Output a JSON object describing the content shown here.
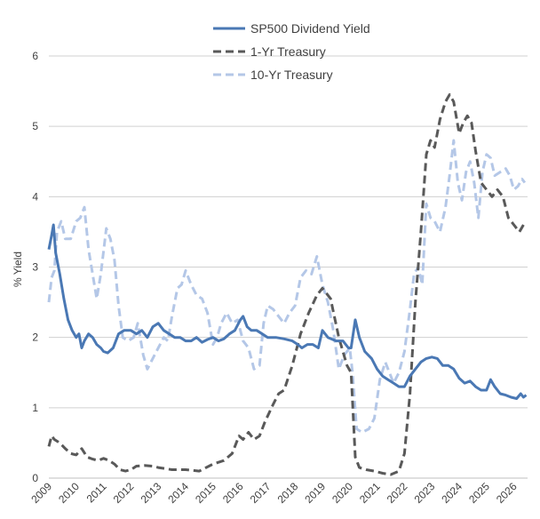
{
  "chart_data": {
    "type": "line",
    "title": "",
    "ylabel": "% Yield",
    "xlabel": "",
    "xlim": [
      2009,
      2026.5
    ],
    "ylim": [
      0,
      6
    ],
    "yticks": [
      "0",
      "1",
      "2",
      "3",
      "4",
      "5",
      "6"
    ],
    "xticks": [
      "2009",
      "2010",
      "2011",
      "2012",
      "2013",
      "2014",
      "2015",
      "2016",
      "2017",
      "2018",
      "2019",
      "2020",
      "2021",
      "2022",
      "2023",
      "2024",
      "2025",
      "2026"
    ],
    "grid": "horizontal",
    "legend": "top-center",
    "series": [
      {
        "name": "SP500 Dividend Yield",
        "color": "#4a78b4",
        "style": "solid",
        "points": [
          [
            2009.0,
            3.25
          ],
          [
            2009.1,
            3.45
          ],
          [
            2009.17,
            3.6
          ],
          [
            2009.25,
            3.2
          ],
          [
            2009.4,
            2.9
          ],
          [
            2009.55,
            2.55
          ],
          [
            2009.7,
            2.25
          ],
          [
            2009.85,
            2.1
          ],
          [
            2010.0,
            2.0
          ],
          [
            2010.1,
            2.05
          ],
          [
            2010.2,
            1.85
          ],
          [
            2010.3,
            1.95
          ],
          [
            2010.45,
            2.05
          ],
          [
            2010.6,
            2.0
          ],
          [
            2010.75,
            1.9
          ],
          [
            2010.9,
            1.85
          ],
          [
            2011.0,
            1.8
          ],
          [
            2011.15,
            1.78
          ],
          [
            2011.35,
            1.85
          ],
          [
            2011.55,
            2.05
          ],
          [
            2011.75,
            2.1
          ],
          [
            2012.0,
            2.1
          ],
          [
            2012.2,
            2.05
          ],
          [
            2012.4,
            2.1
          ],
          [
            2012.6,
            2.0
          ],
          [
            2012.8,
            2.15
          ],
          [
            2013.0,
            2.2
          ],
          [
            2013.2,
            2.1
          ],
          [
            2013.4,
            2.05
          ],
          [
            2013.6,
            2.0
          ],
          [
            2013.8,
            2.0
          ],
          [
            2014.0,
            1.95
          ],
          [
            2014.2,
            1.95
          ],
          [
            2014.4,
            2.0
          ],
          [
            2014.6,
            1.93
          ],
          [
            2014.8,
            1.97
          ],
          [
            2015.0,
            2.0
          ],
          [
            2015.2,
            1.95
          ],
          [
            2015.4,
            1.98
          ],
          [
            2015.6,
            2.05
          ],
          [
            2015.8,
            2.1
          ],
          [
            2016.0,
            2.25
          ],
          [
            2016.1,
            2.3
          ],
          [
            2016.25,
            2.15
          ],
          [
            2016.4,
            2.1
          ],
          [
            2016.6,
            2.1
          ],
          [
            2016.8,
            2.05
          ],
          [
            2017.0,
            2.0
          ],
          [
            2017.3,
            2.0
          ],
          [
            2017.6,
            1.98
          ],
          [
            2017.9,
            1.95
          ],
          [
            2018.1,
            1.9
          ],
          [
            2018.25,
            1.85
          ],
          [
            2018.45,
            1.9
          ],
          [
            2018.65,
            1.9
          ],
          [
            2018.85,
            1.85
          ],
          [
            2019.0,
            2.1
          ],
          [
            2019.2,
            2.0
          ],
          [
            2019.5,
            1.95
          ],
          [
            2019.75,
            1.95
          ],
          [
            2019.95,
            1.85
          ],
          [
            2020.05,
            1.85
          ],
          [
            2020.2,
            2.25
          ],
          [
            2020.35,
            2.0
          ],
          [
            2020.55,
            1.8
          ],
          [
            2020.8,
            1.7
          ],
          [
            2021.0,
            1.55
          ],
          [
            2021.2,
            1.45
          ],
          [
            2021.4,
            1.4
          ],
          [
            2021.6,
            1.35
          ],
          [
            2021.8,
            1.3
          ],
          [
            2022.0,
            1.3
          ],
          [
            2022.2,
            1.45
          ],
          [
            2022.4,
            1.55
          ],
          [
            2022.6,
            1.65
          ],
          [
            2022.8,
            1.7
          ],
          [
            2023.0,
            1.72
          ],
          [
            2023.2,
            1.7
          ],
          [
            2023.4,
            1.6
          ],
          [
            2023.6,
            1.6
          ],
          [
            2023.8,
            1.55
          ],
          [
            2024.0,
            1.42
          ],
          [
            2024.2,
            1.35
          ],
          [
            2024.4,
            1.38
          ],
          [
            2024.6,
            1.3
          ],
          [
            2024.8,
            1.25
          ],
          [
            2025.0,
            1.25
          ],
          [
            2025.15,
            1.4
          ],
          [
            2025.3,
            1.3
          ],
          [
            2025.5,
            1.2
          ],
          [
            2025.7,
            1.18
          ],
          [
            2025.9,
            1.15
          ],
          [
            2026.1,
            1.13
          ],
          [
            2026.25,
            1.2
          ],
          [
            2026.35,
            1.15
          ],
          [
            2026.45,
            1.18
          ]
        ]
      },
      {
        "name": "1-Yr Treasury",
        "color": "#595959",
        "style": "dashed",
        "points": [
          [
            2009.0,
            0.45
          ],
          [
            2009.1,
            0.6
          ],
          [
            2009.2,
            0.55
          ],
          [
            2009.4,
            0.5
          ],
          [
            2009.6,
            0.42
          ],
          [
            2009.8,
            0.35
          ],
          [
            2010.0,
            0.33
          ],
          [
            2010.2,
            0.42
          ],
          [
            2010.4,
            0.3
          ],
          [
            2010.6,
            0.27
          ],
          [
            2010.8,
            0.25
          ],
          [
            2011.0,
            0.28
          ],
          [
            2011.2,
            0.25
          ],
          [
            2011.4,
            0.2
          ],
          [
            2011.6,
            0.12
          ],
          [
            2011.8,
            0.1
          ],
          [
            2012.0,
            0.12
          ],
          [
            2012.2,
            0.17
          ],
          [
            2012.5,
            0.18
          ],
          [
            2012.8,
            0.17
          ],
          [
            2013.0,
            0.15
          ],
          [
            2013.5,
            0.12
          ],
          [
            2014.0,
            0.12
          ],
          [
            2014.5,
            0.1
          ],
          [
            2015.0,
            0.2
          ],
          [
            2015.4,
            0.25
          ],
          [
            2015.7,
            0.35
          ],
          [
            2015.95,
            0.6
          ],
          [
            2016.1,
            0.55
          ],
          [
            2016.3,
            0.65
          ],
          [
            2016.5,
            0.55
          ],
          [
            2016.7,
            0.6
          ],
          [
            2016.9,
            0.8
          ],
          [
            2017.2,
            1.05
          ],
          [
            2017.4,
            1.2
          ],
          [
            2017.6,
            1.25
          ],
          [
            2017.9,
            1.6
          ],
          [
            2018.2,
            2.05
          ],
          [
            2018.5,
            2.35
          ],
          [
            2018.8,
            2.6
          ],
          [
            2019.0,
            2.7
          ],
          [
            2019.3,
            2.55
          ],
          [
            2019.6,
            2.0
          ],
          [
            2019.9,
            1.6
          ],
          [
            2020.05,
            1.5
          ],
          [
            2020.2,
            0.3
          ],
          [
            2020.35,
            0.15
          ],
          [
            2020.6,
            0.12
          ],
          [
            2020.9,
            0.1
          ],
          [
            2021.2,
            0.07
          ],
          [
            2021.5,
            0.05
          ],
          [
            2021.8,
            0.1
          ],
          [
            2022.0,
            0.35
          ],
          [
            2022.2,
            1.2
          ],
          [
            2022.4,
            2.5
          ],
          [
            2022.6,
            3.5
          ],
          [
            2022.8,
            4.6
          ],
          [
            2022.95,
            4.8
          ],
          [
            2023.1,
            4.7
          ],
          [
            2023.3,
            5.1
          ],
          [
            2023.5,
            5.35
          ],
          [
            2023.65,
            5.45
          ],
          [
            2023.8,
            5.35
          ],
          [
            2024.0,
            4.9
          ],
          [
            2024.15,
            5.05
          ],
          [
            2024.3,
            5.15
          ],
          [
            2024.45,
            5.05
          ],
          [
            2024.6,
            4.65
          ],
          [
            2024.8,
            4.2
          ],
          [
            2025.0,
            4.1
          ],
          [
            2025.2,
            4.0
          ],
          [
            2025.4,
            4.1
          ],
          [
            2025.6,
            4.0
          ],
          [
            2025.8,
            3.7
          ],
          [
            2026.0,
            3.6
          ],
          [
            2026.2,
            3.5
          ],
          [
            2026.35,
            3.6
          ]
        ]
      },
      {
        "name": "10-Yr Treasury",
        "color": "#b4c7e7",
        "style": "dashed",
        "points": [
          [
            2009.0,
            2.5
          ],
          [
            2009.1,
            2.85
          ],
          [
            2009.2,
            2.95
          ],
          [
            2009.3,
            3.5
          ],
          [
            2009.45,
            3.65
          ],
          [
            2009.6,
            3.4
          ],
          [
            2009.8,
            3.4
          ],
          [
            2010.0,
            3.65
          ],
          [
            2010.15,
            3.7
          ],
          [
            2010.3,
            3.85
          ],
          [
            2010.45,
            3.25
          ],
          [
            2010.6,
            2.9
          ],
          [
            2010.75,
            2.55
          ],
          [
            2010.9,
            2.9
          ],
          [
            2011.1,
            3.55
          ],
          [
            2011.25,
            3.4
          ],
          [
            2011.4,
            3.1
          ],
          [
            2011.55,
            2.45
          ],
          [
            2011.7,
            2.0
          ],
          [
            2011.9,
            1.95
          ],
          [
            2012.1,
            2.0
          ],
          [
            2012.25,
            2.2
          ],
          [
            2012.45,
            1.75
          ],
          [
            2012.6,
            1.55
          ],
          [
            2012.8,
            1.7
          ],
          [
            2013.0,
            1.85
          ],
          [
            2013.2,
            2.0
          ],
          [
            2013.35,
            1.95
          ],
          [
            2013.5,
            2.3
          ],
          [
            2013.7,
            2.7
          ],
          [
            2013.85,
            2.75
          ],
          [
            2014.0,
            2.95
          ],
          [
            2014.2,
            2.75
          ],
          [
            2014.4,
            2.6
          ],
          [
            2014.6,
            2.55
          ],
          [
            2014.8,
            2.35
          ],
          [
            2015.0,
            1.9
          ],
          [
            2015.15,
            2.0
          ],
          [
            2015.3,
            2.2
          ],
          [
            2015.5,
            2.35
          ],
          [
            2015.7,
            2.2
          ],
          [
            2015.9,
            2.25
          ],
          [
            2016.1,
            1.95
          ],
          [
            2016.3,
            1.85
          ],
          [
            2016.5,
            1.55
          ],
          [
            2016.7,
            1.6
          ],
          [
            2016.85,
            2.2
          ],
          [
            2017.0,
            2.45
          ],
          [
            2017.2,
            2.4
          ],
          [
            2017.4,
            2.3
          ],
          [
            2017.6,
            2.2
          ],
          [
            2017.8,
            2.35
          ],
          [
            2018.0,
            2.45
          ],
          [
            2018.2,
            2.85
          ],
          [
            2018.4,
            2.95
          ],
          [
            2018.6,
            2.9
          ],
          [
            2018.8,
            3.15
          ],
          [
            2019.0,
            2.75
          ],
          [
            2019.2,
            2.5
          ],
          [
            2019.4,
            2.1
          ],
          [
            2019.6,
            1.55
          ],
          [
            2019.8,
            1.75
          ],
          [
            2020.0,
            1.85
          ],
          [
            2020.1,
            1.5
          ],
          [
            2020.25,
            0.7
          ],
          [
            2020.45,
            0.65
          ],
          [
            2020.7,
            0.7
          ],
          [
            2020.9,
            0.85
          ],
          [
            2021.1,
            1.4
          ],
          [
            2021.3,
            1.65
          ],
          [
            2021.45,
            1.5
          ],
          [
            2021.6,
            1.35
          ],
          [
            2021.8,
            1.5
          ],
          [
            2022.0,
            1.8
          ],
          [
            2022.2,
            2.4
          ],
          [
            2022.35,
            2.9
          ],
          [
            2022.5,
            3.0
          ],
          [
            2022.65,
            2.75
          ],
          [
            2022.8,
            3.9
          ],
          [
            2022.95,
            3.7
          ],
          [
            2023.1,
            3.65
          ],
          [
            2023.3,
            3.5
          ],
          [
            2023.5,
            3.85
          ],
          [
            2023.65,
            4.3
          ],
          [
            2023.8,
            4.8
          ],
          [
            2023.95,
            4.2
          ],
          [
            2024.1,
            3.95
          ],
          [
            2024.25,
            4.35
          ],
          [
            2024.4,
            4.5
          ],
          [
            2024.55,
            4.2
          ],
          [
            2024.7,
            3.7
          ],
          [
            2024.85,
            4.35
          ],
          [
            2025.0,
            4.6
          ],
          [
            2025.15,
            4.55
          ],
          [
            2025.3,
            4.3
          ],
          [
            2025.5,
            4.35
          ],
          [
            2025.7,
            4.4
          ],
          [
            2025.85,
            4.3
          ],
          [
            2026.0,
            4.1
          ],
          [
            2026.15,
            4.15
          ],
          [
            2026.3,
            4.25
          ],
          [
            2026.4,
            4.2
          ]
        ]
      }
    ]
  }
}
